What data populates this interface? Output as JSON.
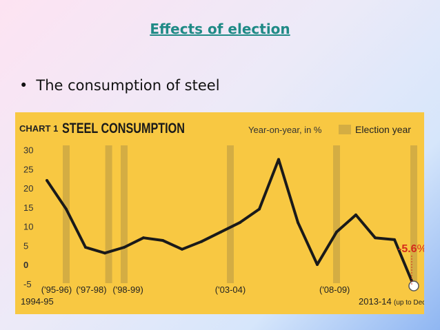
{
  "slide": {
    "title": "Effects of election",
    "bullet_text": "The consumption of steel"
  },
  "colors": {
    "chart_background": "#f8c842",
    "election_band": "#d4ad43",
    "line": "#1a1a1a",
    "highlight_value": "#d52a1b",
    "title_teal": "#1f8a86"
  },
  "chart_data": {
    "type": "line",
    "chart_label": "CHART 1",
    "title": "STEEL CONSUMPTION",
    "ylabel": "Year-on-year, in %",
    "legend": {
      "label": "Election year",
      "placement": "top-right"
    },
    "ylim": [
      -5,
      30
    ],
    "yticks": [
      30,
      25,
      20,
      15,
      10,
      5,
      0,
      -5
    ],
    "grid": false,
    "x": [
      0,
      1,
      2,
      3,
      4,
      5,
      6,
      7,
      8,
      9,
      10,
      11,
      12,
      13,
      14,
      15,
      16,
      17,
      18,
      19
    ],
    "values": [
      22,
      14.5,
      4.5,
      3,
      4.5,
      7,
      6.3,
      4,
      6,
      8.5,
      11,
      14.5,
      27.5,
      11,
      0,
      8.5,
      13,
      7,
      6.5,
      -5.6
    ],
    "election_years_x": [
      1,
      3.2,
      4,
      9.5,
      15,
      19
    ],
    "x_tick_labels": [
      {
        "x": 0.5,
        "text": "('95-96)"
      },
      {
        "x": 2.3,
        "text": "('97-98)"
      },
      {
        "x": 4.2,
        "text": "('98-99)"
      },
      {
        "x": 9.5,
        "text": "('03-04)"
      },
      {
        "x": 14.9,
        "text": "('08-09)"
      }
    ],
    "start_label": "1994-95",
    "end_label": "2013-14",
    "end_note": "(up to Dec)",
    "final_value_label": "-5.6",
    "final_value_unit": "%"
  }
}
